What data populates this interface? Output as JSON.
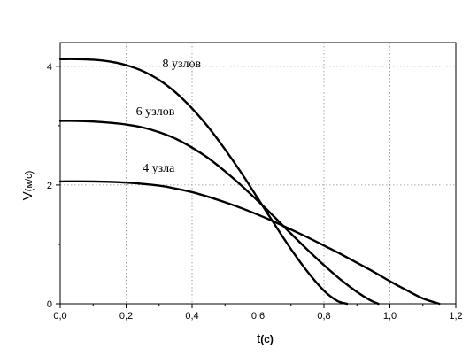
{
  "chart_data": {
    "type": "line",
    "title": "",
    "xlabel": "t",
    "xlabel_unit": "(с)",
    "ylabel": "V",
    "ylabel_unit": "(м/с)",
    "xlim": [
      0,
      1.2
    ],
    "ylim": [
      0,
      4.4
    ],
    "x_ticks": [
      "0,0",
      "0,2",
      "0,4",
      "0,6",
      "0,8",
      "1,0",
      "1,2"
    ],
    "x_tick_values": [
      0,
      0.2,
      0.4,
      0.6,
      0.8,
      1.0,
      1.2
    ],
    "y_ticks": [
      "0",
      "2",
      "4"
    ],
    "y_tick_values": [
      0,
      2,
      4
    ],
    "grid": true,
    "legend": "none",
    "series": [
      {
        "label": "8 узлов",
        "x": [
          0.0,
          0.05,
          0.1,
          0.15,
          0.2,
          0.25,
          0.3,
          0.35,
          0.4,
          0.45,
          0.5,
          0.55,
          0.6,
          0.65,
          0.7,
          0.75,
          0.8,
          0.84,
          0.87
        ],
        "y": [
          4.12,
          4.12,
          4.11,
          4.08,
          4.02,
          3.92,
          3.77,
          3.56,
          3.29,
          2.97,
          2.6,
          2.2,
          1.77,
          1.34,
          0.92,
          0.54,
          0.22,
          0.05,
          0.0
        ]
      },
      {
        "label": "6 узлов",
        "x": [
          0.0,
          0.05,
          0.1,
          0.15,
          0.2,
          0.25,
          0.3,
          0.35,
          0.4,
          0.45,
          0.5,
          0.55,
          0.6,
          0.65,
          0.7,
          0.75,
          0.8,
          0.85,
          0.9,
          0.94,
          0.965
        ],
        "y": [
          3.08,
          3.08,
          3.07,
          3.05,
          3.02,
          2.97,
          2.89,
          2.78,
          2.63,
          2.45,
          2.23,
          1.99,
          1.73,
          1.46,
          1.18,
          0.91,
          0.65,
          0.41,
          0.2,
          0.06,
          0.0
        ]
      },
      {
        "label": "4 узла",
        "x": [
          0.0,
          0.1,
          0.2,
          0.3,
          0.35,
          0.4,
          0.45,
          0.5,
          0.55,
          0.6,
          0.65,
          0.7,
          0.75,
          0.8,
          0.85,
          0.9,
          0.95,
          1.0,
          1.05,
          1.1,
          1.15
        ],
        "y": [
          2.06,
          2.06,
          2.04,
          1.99,
          1.94,
          1.88,
          1.8,
          1.71,
          1.61,
          1.5,
          1.38,
          1.25,
          1.12,
          0.98,
          0.84,
          0.69,
          0.54,
          0.38,
          0.23,
          0.09,
          0.0
        ]
      }
    ],
    "annotations": [
      {
        "text": "8 узлов",
        "series": 0,
        "anchor_x": 0.31,
        "anchor_y": 3.98
      },
      {
        "text": "6 узлов",
        "series": 1,
        "anchor_x": 0.23,
        "anchor_y": 3.18
      },
      {
        "text": "4 узла",
        "series": 2,
        "anchor_x": 0.25,
        "anchor_y": 2.22
      }
    ]
  }
}
